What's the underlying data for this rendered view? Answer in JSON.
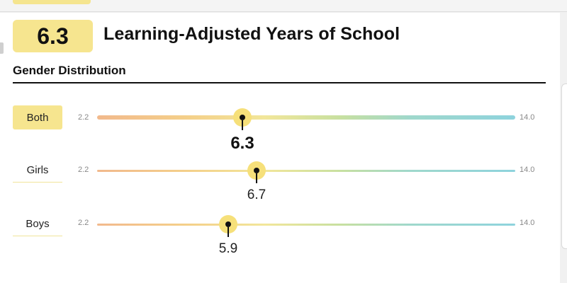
{
  "metric": {
    "score": "6.3",
    "title": "Learning-Adjusted Years of School"
  },
  "section": {
    "title": "Gender Distribution"
  },
  "scale": {
    "min": 2.2,
    "max": 14.0,
    "min_label": "2.2",
    "max_label": "14.0"
  },
  "rows": [
    {
      "label": "Both",
      "value": 6.3,
      "value_label": "6.3",
      "selected": true
    },
    {
      "label": "Girls",
      "value": 6.7,
      "value_label": "6.7",
      "selected": false
    },
    {
      "label": "Boys",
      "value": 5.9,
      "value_label": "5.9",
      "selected": false
    }
  ],
  "colors": {
    "accent": "#f6e58f",
    "marker": "#f6e07a",
    "gradient_start": "#f2b98c",
    "gradient_end": "#8ed3dd"
  }
}
